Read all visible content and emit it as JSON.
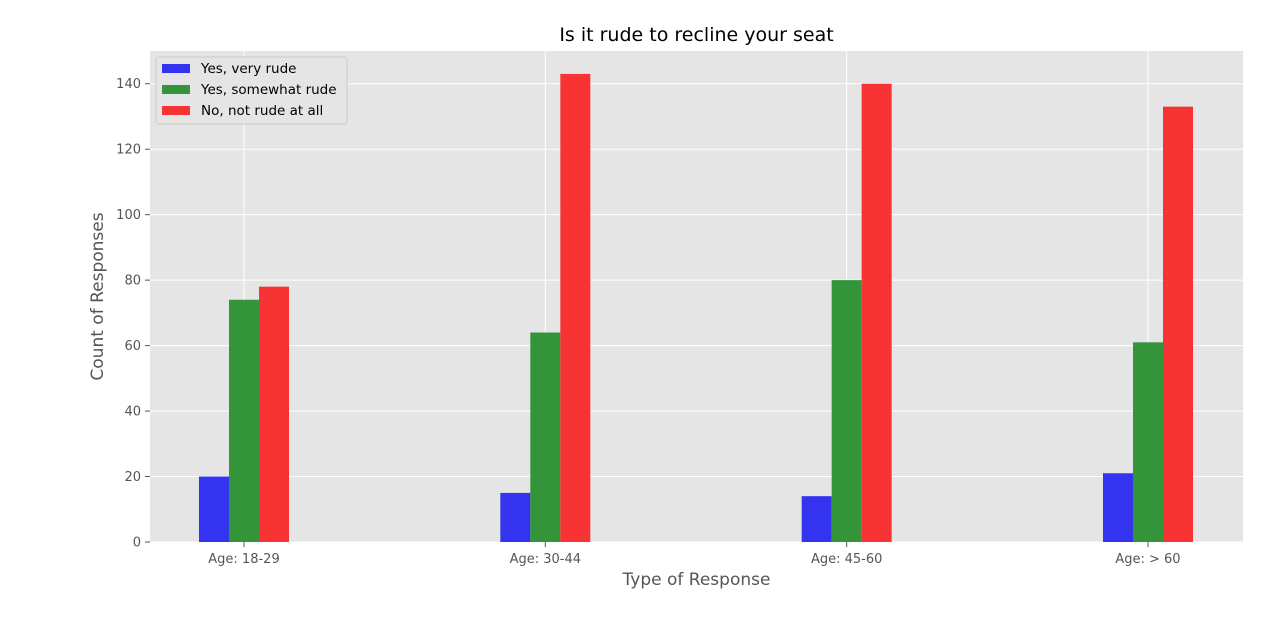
{
  "chart_data": {
    "type": "bar",
    "title": "Is it rude to recline your seat",
    "xlabel": "Type of Response",
    "ylabel": "Count of Responses",
    "categories": [
      "Age: 18-29",
      "Age: 30-44",
      "Age: 45-60",
      "Age: > 60"
    ],
    "series": [
      {
        "name": "Yes, very rude",
        "color": "#3333f0",
        "values": [
          20,
          15,
          14,
          21
        ]
      },
      {
        "name": "Yes, somewhat rude",
        "color": "#33943a",
        "values": [
          74,
          64,
          80,
          61
        ]
      },
      {
        "name": "No, not rude at all",
        "color": "#f73333",
        "values": [
          78,
          143,
          140,
          133
        ]
      }
    ],
    "ylim": [
      0,
      150
    ],
    "yticks": [
      0,
      20,
      40,
      60,
      80,
      100,
      120,
      140
    ],
    "grid": true,
    "legend_position": "upper-left",
    "background_color": "#e5e5e5",
    "grid_color": "#ffffff"
  }
}
